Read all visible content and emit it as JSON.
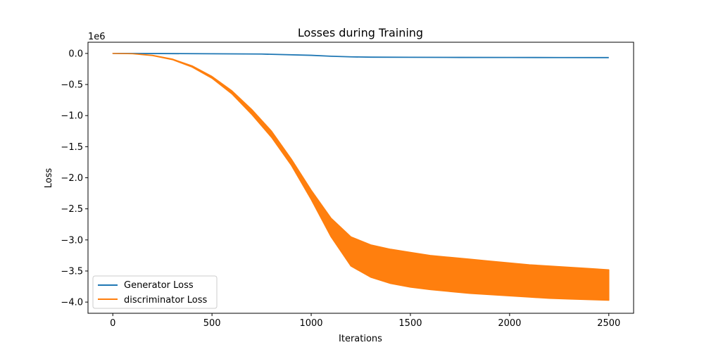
{
  "chart_data": {
    "type": "line",
    "title": "Losses during Training",
    "xlabel": "Iterations",
    "ylabel": "Loss",
    "y_offset_text": "1e6",
    "xlim": [
      -125,
      2625
    ],
    "ylim": [
      -4.18,
      0.18
    ],
    "xticks": [
      0,
      500,
      1000,
      1500,
      2000,
      2500
    ],
    "xtick_labels": [
      "0",
      "500",
      "1000",
      "1500",
      "2000",
      "2500"
    ],
    "yticks": [
      0.0,
      -0.5,
      -1.0,
      -1.5,
      -2.0,
      -2.5,
      -3.0,
      -3.5,
      -4.0
    ],
    "ytick_labels": [
      "0.0",
      "−0.5",
      "−1.0",
      "−1.5",
      "−2.0",
      "−2.5",
      "−3.0",
      "−3.5",
      "−4.0"
    ],
    "grid": false,
    "legend_position": "lower-left",
    "series": [
      {
        "name": "Generator Loss",
        "color": "#1f77b4",
        "x": [
          0,
          250,
          500,
          750,
          1000,
          1100,
          1200,
          1300,
          1500,
          1750,
          2000,
          2250,
          2500
        ],
        "y": [
          0.0,
          -0.002,
          -0.005,
          -0.01,
          -0.03,
          -0.045,
          -0.055,
          -0.06,
          -0.062,
          -0.064,
          -0.065,
          -0.066,
          -0.067
        ]
      },
      {
        "name": "discriminator Loss",
        "color": "#ff7f0e",
        "band": true,
        "x": [
          0,
          100,
          200,
          300,
          400,
          500,
          600,
          700,
          800,
          900,
          1000,
          1100,
          1200,
          1300,
          1400,
          1500,
          1600,
          1700,
          1800,
          1900,
          2000,
          2100,
          2200,
          2300,
          2400,
          2500
        ],
        "y_upper": [
          0.0,
          -0.005,
          -0.03,
          -0.09,
          -0.2,
          -0.37,
          -0.6,
          -0.9,
          -1.25,
          -1.7,
          -2.2,
          -2.65,
          -2.95,
          -3.08,
          -3.15,
          -3.2,
          -3.25,
          -3.28,
          -3.31,
          -3.34,
          -3.37,
          -3.4,
          -3.42,
          -3.44,
          -3.46,
          -3.48
        ],
        "y_lower": [
          0.0,
          -0.005,
          -0.035,
          -0.1,
          -0.22,
          -0.4,
          -0.65,
          -0.98,
          -1.35,
          -1.8,
          -2.35,
          -2.95,
          -3.42,
          -3.6,
          -3.7,
          -3.76,
          -3.8,
          -3.83,
          -3.86,
          -3.88,
          -3.9,
          -3.92,
          -3.94,
          -3.95,
          -3.96,
          -3.97
        ]
      }
    ]
  }
}
